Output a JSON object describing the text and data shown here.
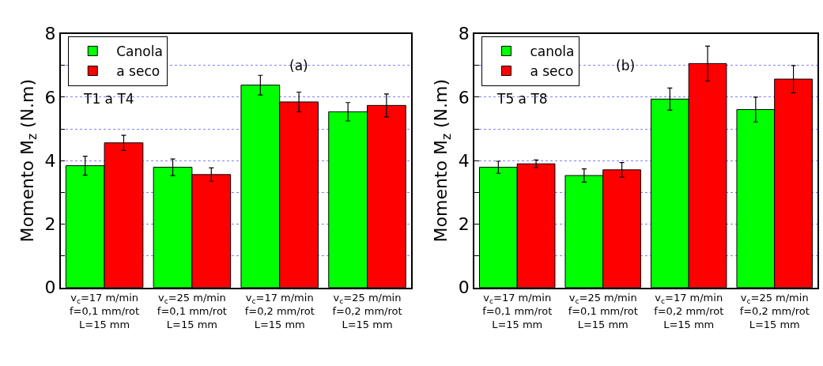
{
  "chart_data": [
    {
      "type": "bar",
      "ylabel": "Momento M$_{z}$ (N.m)",
      "categories": [
        "v$_{c}$=17 m/min\nf=0,1 mm/rot\nL=15 mm",
        "v$_{c}$=25 m/min\nf=0,1 mm/rot\nL=15 mm",
        "v$_{c}$=17 m/min\nf=0,2 mm/rot\nL=15 mm",
        "v$_{c}$=25 m/min\nf=0,2 mm/rot\nL=15 mm"
      ],
      "series": [
        {
          "name": "Canola",
          "color": "#00ff00",
          "values": [
            3.84,
            3.79,
            6.38,
            5.54
          ],
          "errors": [
            0.3,
            0.26,
            0.31,
            0.29
          ]
        },
        {
          "name": "a seco",
          "color": "#ff0000",
          "values": [
            4.56,
            3.56,
            5.85,
            5.74
          ],
          "errors": [
            0.24,
            0.21,
            0.31,
            0.36
          ]
        }
      ],
      "ylim": [
        0,
        8
      ],
      "yticks": [
        0,
        {
          "value": 1,
          "label": null
        },
        2,
        {
          "value": 3,
          "label": null
        },
        4,
        {
          "value": 5,
          "label": null
        },
        6,
        {
          "value": 7,
          "label": null
        },
        8
      ],
      "grid": "y",
      "legend": "top left",
      "annotations": [
        "T1 a T4",
        "(a)"
      ]
    },
    {
      "type": "bar",
      "ylabel": "Momento M$_{z}$ (N.m)",
      "categories": [
        "v$_{c}$=17 m/min\nf=0,1 mm/rot\nL=15 mm",
        "v$_{c}$=25 m/min\nf=0,1 mm/rot\nL=15 mm",
        "v$_{c}$=17 m/min\nf=0,2 mm/rot\nL=15 mm",
        "v$_{c}$=25 m/min\nf=0,2 mm/rot\nL=15 mm"
      ],
      "series": [
        {
          "name": "canola",
          "color": "#00ff00",
          "values": [
            3.79,
            3.53,
            5.94,
            5.61
          ],
          "errors": [
            0.19,
            0.21,
            0.35,
            0.39
          ]
        },
        {
          "name": "a seco",
          "color": "#ff0000",
          "values": [
            3.9,
            3.71,
            7.06,
            6.57
          ],
          "errors": [
            0.12,
            0.23,
            0.55,
            0.43
          ]
        }
      ],
      "ylim": [
        0,
        8
      ],
      "yticks": [
        0,
        {
          "value": 1,
          "label": null
        },
        2,
        {
          "value": 3,
          "label": null
        },
        4,
        {
          "value": 5,
          "label": null
        },
        6,
        {
          "value": 7,
          "label": null
        },
        8
      ],
      "grid": "y",
      "legend": "top left",
      "annotations": [
        "T5 a T8",
        "(b)"
      ]
    }
  ]
}
